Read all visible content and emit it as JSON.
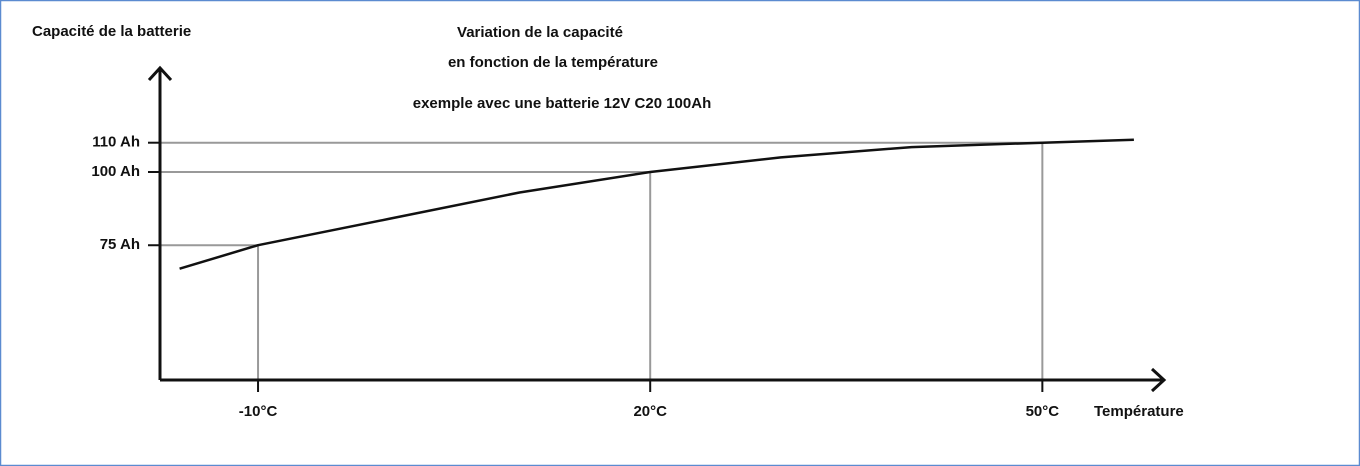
{
  "chart_data": {
    "type": "line",
    "title": [
      "Variation de la capacité",
      "en fonction de la température"
    ],
    "subtitle": "exemple avec une batterie 12V C20 100Ah",
    "y_label": "Capacité de la batterie",
    "x_label": "Température",
    "x": [
      -16,
      -10,
      0,
      10,
      20,
      30,
      40,
      50,
      57
    ],
    "series": [
      {
        "color": "#111111",
        "values": [
          67,
          75,
          84,
          93,
          100,
          105,
          108.5,
          110,
          111
        ]
      }
    ],
    "xlim": [
      -17.5,
      59
    ],
    "ylim": [
      29,
      135.5
    ],
    "xticks": [
      {
        "value": -10,
        "label": "-10°C"
      },
      {
        "value": 20,
        "label": "20°C"
      },
      {
        "value": 50,
        "label": "50°C"
      }
    ],
    "yticks": [
      {
        "value": 75,
        "label": "75 Ah"
      },
      {
        "value": 100,
        "label": "100 Ah"
      },
      {
        "value": 110,
        "label": "110 Ah"
      }
    ],
    "guide_color": "#999999"
  }
}
